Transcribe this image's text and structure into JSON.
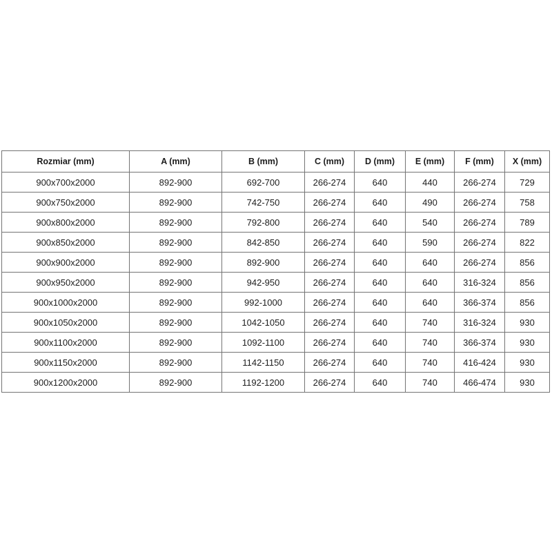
{
  "table": {
    "columns": [
      "Rozmiar (mm)",
      "A (mm)",
      "B (mm)",
      "C (mm)",
      "D (mm)",
      "E (mm)",
      "F (mm)",
      "X (mm)"
    ],
    "rows": [
      [
        "900x700x2000",
        "892-900",
        "692-700",
        "266-274",
        "640",
        "440",
        "266-274",
        "729"
      ],
      [
        "900x750x2000",
        "892-900",
        "742-750",
        "266-274",
        "640",
        "490",
        "266-274",
        "758"
      ],
      [
        "900x800x2000",
        "892-900",
        "792-800",
        "266-274",
        "640",
        "540",
        "266-274",
        "789"
      ],
      [
        "900x850x2000",
        "892-900",
        "842-850",
        "266-274",
        "640",
        "590",
        "266-274",
        "822"
      ],
      [
        "900x900x2000",
        "892-900",
        "892-900",
        "266-274",
        "640",
        "640",
        "266-274",
        "856"
      ],
      [
        "900x950x2000",
        "892-900",
        "942-950",
        "266-274",
        "640",
        "640",
        "316-324",
        "856"
      ],
      [
        "900x1000x2000",
        "892-900",
        "992-1000",
        "266-274",
        "640",
        "640",
        "366-374",
        "856"
      ],
      [
        "900x1050x2000",
        "892-900",
        "1042-1050",
        "266-274",
        "640",
        "740",
        "316-324",
        "930"
      ],
      [
        "900x1100x2000",
        "892-900",
        "1092-1100",
        "266-274",
        "640",
        "740",
        "366-374",
        "930"
      ],
      [
        "900x1150x2000",
        "892-900",
        "1142-1150",
        "266-274",
        "640",
        "740",
        "416-424",
        "930"
      ],
      [
        "900x1200x2000",
        "892-900",
        "1192-1200",
        "266-274",
        "640",
        "740",
        "466-474",
        "930"
      ]
    ],
    "colors": {
      "border": "#737373",
      "text": "#1c1c1c",
      "background": "#ffffff"
    }
  }
}
